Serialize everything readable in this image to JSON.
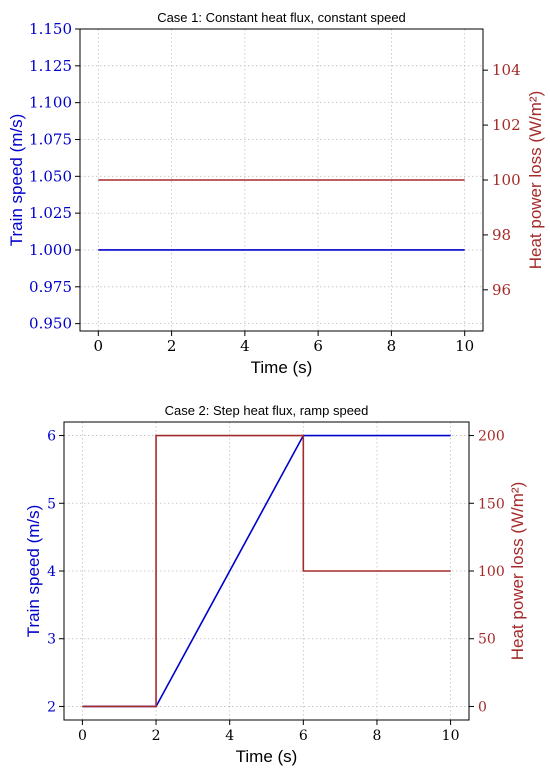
{
  "chart_data": [
    {
      "type": "line",
      "title": "Case 1: Constant heat flux, constant speed",
      "xlabel": "Time (s)",
      "ylabel": "Train speed (m/s)",
      "y2label": "Heat power loss (W/m²)",
      "xlim": [
        -0.5,
        10.5
      ],
      "ylim": [
        0.945,
        1.15
      ],
      "y2lim": [
        94.5,
        105.5
      ],
      "xticks": [
        0,
        2,
        4,
        6,
        8,
        10
      ],
      "yticks": [
        0.95,
        0.975,
        1.0,
        1.025,
        1.05,
        1.075,
        1.1,
        1.125,
        1.15
      ],
      "ytick_labels": [
        "0.950",
        "0.975",
        "1.000",
        "1.025",
        "1.050",
        "1.075",
        "1.100",
        "1.125",
        "1.150"
      ],
      "y2ticks": [
        96,
        98,
        100,
        102,
        104
      ],
      "grid": true,
      "series": [
        {
          "axis": "left",
          "color": "#0000cc",
          "x": [
            0,
            10
          ],
          "y": [
            1.0,
            1.0
          ]
        },
        {
          "axis": "right",
          "color": "#a52a2a",
          "x": [
            0,
            10
          ],
          "y": [
            100,
            100
          ]
        }
      ]
    },
    {
      "type": "line",
      "title": "Case 2: Step heat flux, ramp speed",
      "xlabel": "Time (s)",
      "ylabel": "Train speed (m/s)",
      "y2label": "Heat power loss (W/m²)",
      "xlim": [
        -0.5,
        10.5
      ],
      "ylim": [
        1.8,
        6.2
      ],
      "y2lim": [
        -10,
        210
      ],
      "xticks": [
        0,
        2,
        4,
        6,
        8,
        10
      ],
      "yticks": [
        2,
        3,
        4,
        5,
        6
      ],
      "ytick_labels": [
        "2",
        "3",
        "4",
        "5",
        "6"
      ],
      "y2ticks": [
        0,
        50,
        100,
        150,
        200
      ],
      "grid": true,
      "series": [
        {
          "axis": "left",
          "color": "#0000cc",
          "x": [
            0,
            2,
            6,
            10
          ],
          "y": [
            2,
            2,
            6,
            6
          ]
        },
        {
          "axis": "right",
          "color": "#a52a2a",
          "x": [
            0,
            2,
            2,
            6,
            6,
            10
          ],
          "y": [
            0,
            0,
            200,
            200,
            100,
            100
          ]
        }
      ]
    }
  ],
  "colors": {
    "left_axis": "#0000cc",
    "right_axis": "#a52a2a"
  }
}
